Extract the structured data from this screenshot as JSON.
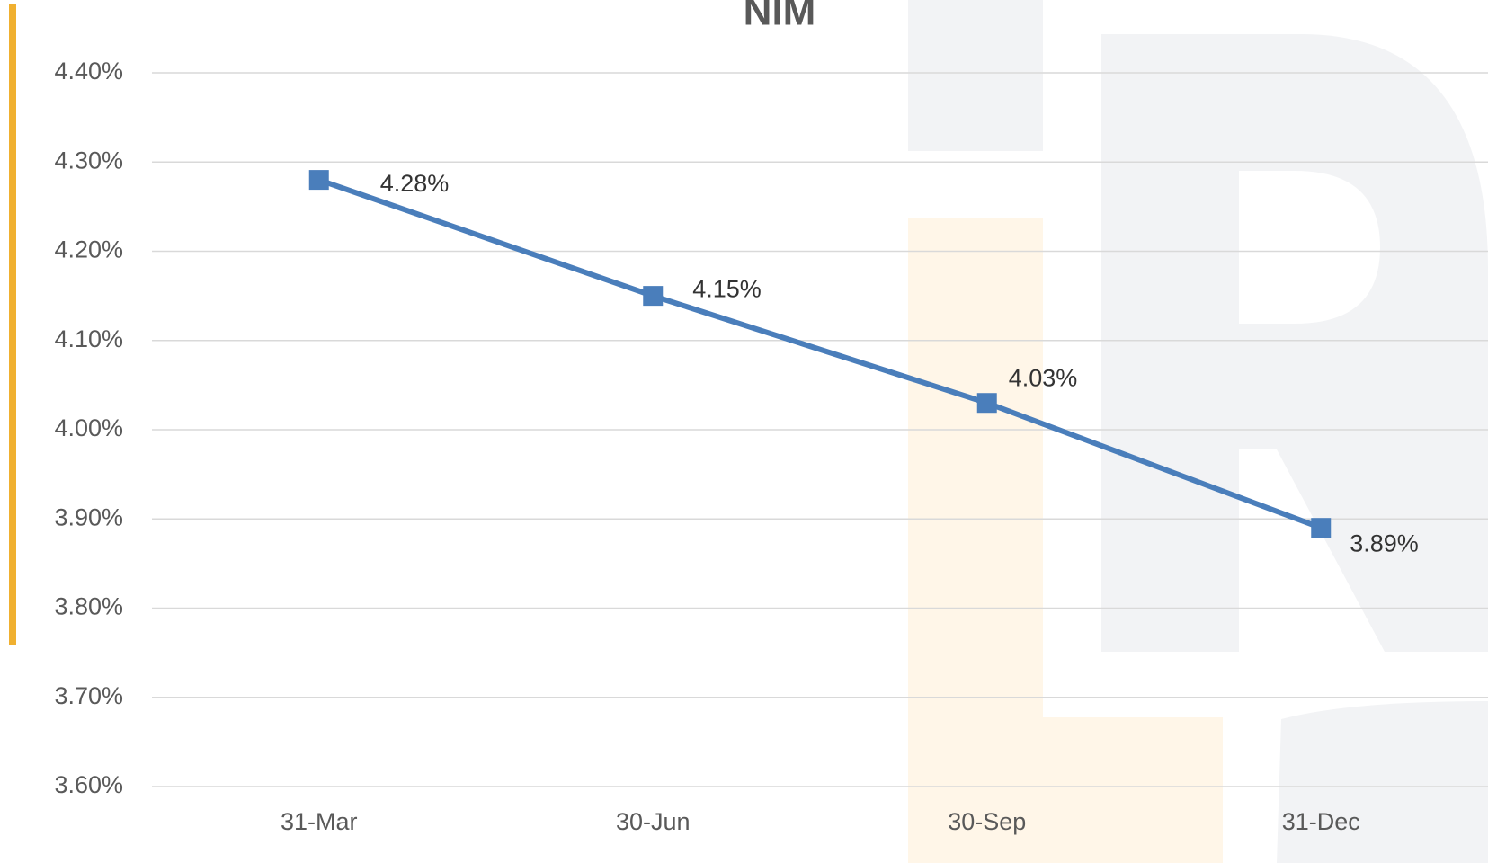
{
  "chart_data": {
    "type": "line",
    "title": "NIM",
    "categories": [
      "31-Mar",
      "30-Jun",
      "30-Sep",
      "31-Dec"
    ],
    "series": [
      {
        "name": "NIM",
        "color": "#4a7ebb",
        "values": [
          4.28,
          4.15,
          4.03,
          3.89
        ],
        "value_labels": [
          "4.28%",
          "4.15%",
          "4.03%",
          "3.89%"
        ]
      }
    ],
    "ylim": [
      3.6,
      4.4
    ],
    "yticks": [
      {
        "value": 3.6,
        "label": "3.60%"
      },
      {
        "value": 3.7,
        "label": "3.70%"
      },
      {
        "value": 3.8,
        "label": "3.80%"
      },
      {
        "value": 3.9,
        "label": "3.90%"
      },
      {
        "value": 4.0,
        "label": "4.00%"
      },
      {
        "value": 4.1,
        "label": "4.10%"
      },
      {
        "value": 4.2,
        "label": "4.20%"
      },
      {
        "value": 4.3,
        "label": "4.30%"
      },
      {
        "value": 4.4,
        "label": "4.40%"
      }
    ],
    "grid": true
  }
}
